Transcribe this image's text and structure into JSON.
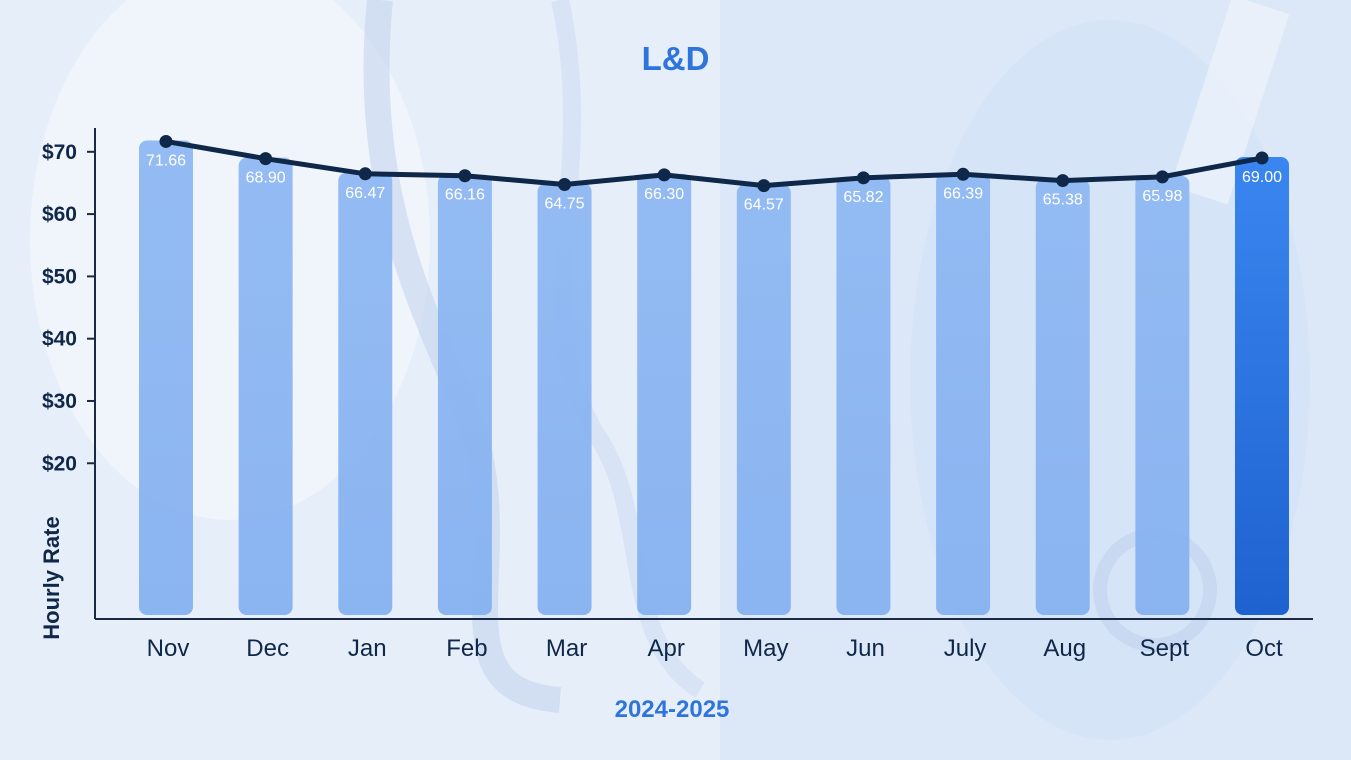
{
  "chart_data": {
    "type": "bar",
    "title": "L&D",
    "xlabel": "2024-2025",
    "ylabel": "Hourly Rate",
    "categories": [
      "Nov",
      "Dec",
      "Jan",
      "Feb",
      "Mar",
      "Apr",
      "May",
      "Jun",
      "July",
      "Aug",
      "Sept",
      "Oct"
    ],
    "values": [
      71.66,
      68.9,
      66.47,
      66.16,
      64.75,
      66.3,
      64.57,
      65.82,
      66.39,
      65.38,
      65.98,
      69.0
    ],
    "value_labels": [
      "71.66",
      "68.90",
      "66.47",
      "66.16",
      "64.75",
      "66.30",
      "64.57",
      "65.82",
      "66.39",
      "65.38",
      "65.98",
      "69.00"
    ],
    "yticks": [
      20,
      30,
      40,
      50,
      60,
      70
    ],
    "ytick_labels": [
      "$20",
      "$30",
      "$40",
      "$50",
      "$60",
      "$70"
    ],
    "ylim": [
      -5,
      73.5
    ],
    "overlay_line": true,
    "highlight_category": "Oct",
    "grid": false,
    "colors": {
      "title": "#2f74dd",
      "bar": "#86b2f0",
      "bar_highlight": "#2e7ae6",
      "line": "#0f2748",
      "axis_text": "#0f2748",
      "value_label": "#ffffff"
    }
  }
}
